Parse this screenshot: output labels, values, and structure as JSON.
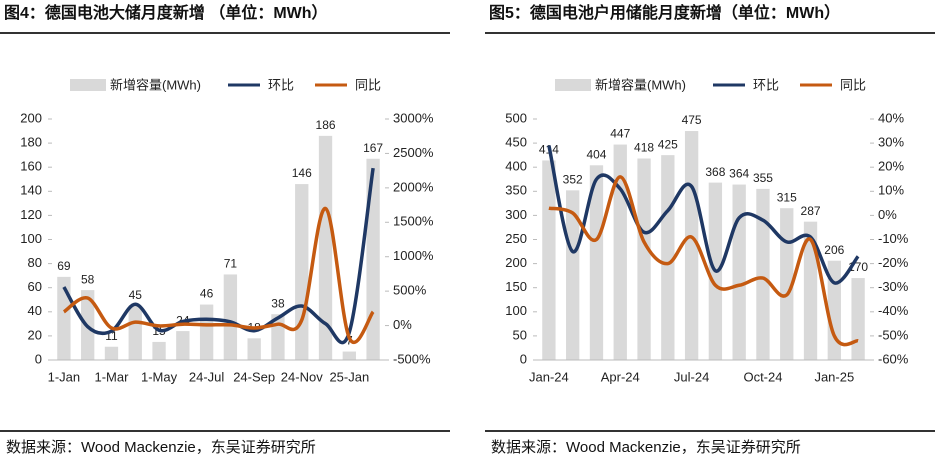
{
  "chart_data": [
    {
      "type": "bar",
      "title": "图4：德国电池大储月度新增 （单位：MWh）",
      "source": "数据来源：Wood Mackenzie，东吴证券研究所",
      "categories": [
        "1-Jan",
        null,
        "1-Mar",
        null,
        "1-May",
        null,
        "24-Jul",
        null,
        "24-Sep",
        null,
        "24-Nov",
        null,
        "25-Jan",
        null
      ],
      "series": [
        {
          "name": "新增容量(MWh)",
          "type": "bar",
          "color": "#d9d9d9",
          "values": [
            69,
            58,
            11,
            45,
            15,
            24,
            46,
            71,
            18,
            38,
            146,
            186,
            7,
            167
          ]
        },
        {
          "name": "环比",
          "type": "line",
          "axis": "y2",
          "color": "#1f3864",
          "values": [
            560,
            -16,
            -81,
            309,
            -67,
            60,
            92,
            54,
            -75,
            111,
            284,
            27,
            -96,
            2286
          ]
        },
        {
          "name": "同比",
          "type": "line",
          "axis": "y2",
          "color": "#c55a11",
          "values": [
            200,
            400,
            -35,
            50,
            -5,
            20,
            10,
            10,
            -35,
            20,
            80,
            1700,
            -180,
            200
          ]
        }
      ],
      "ylim": [
        0,
        200
      ],
      "yticks": [
        0,
        20,
        40,
        60,
        80,
        100,
        120,
        140,
        160,
        180,
        200
      ],
      "y2lim": [
        -500,
        3000
      ],
      "y2ticks": [
        {
          "value": -500,
          "label": "-500%"
        },
        {
          "value": 0,
          "label": "0%"
        },
        {
          "value": 500,
          "label": "500%"
        },
        {
          "value": 1000,
          "label": "1000%"
        },
        {
          "value": 1500,
          "label": "1500%"
        },
        {
          "value": 2000,
          "label": "2000%"
        },
        {
          "value": 2500,
          "label": "2500%"
        },
        {
          "value": 3000,
          "label": "3000%"
        }
      ]
    },
    {
      "type": "bar",
      "title": "图5：德国电池户用储能月度新增（单位：MWh）",
      "source": "数据来源：Wood Mackenzie，东吴证券研究所",
      "categories": [
        "Jan-24",
        null,
        null,
        "Apr-24",
        null,
        null,
        "Jul-24",
        null,
        null,
        "Oct-24",
        null,
        null,
        "Jan-25",
        null
      ],
      "series": [
        {
          "name": "新增容量(MWh)",
          "type": "bar",
          "color": "#d9d9d9",
          "values": [
            414,
            352,
            404,
            447,
            418,
            425,
            475,
            368,
            364,
            355,
            315,
            287,
            206,
            170
          ]
        },
        {
          "name": "环比",
          "type": "line",
          "axis": "y2",
          "color": "#1f3864",
          "values": [
            29,
            -15,
            15,
            11,
            -7,
            2,
            12,
            -23,
            -1,
            -2,
            -11,
            -9,
            -28,
            -17
          ]
        },
        {
          "name": "同比",
          "type": "line",
          "axis": "y2",
          "color": "#c55a11",
          "values": [
            3,
            1,
            -10,
            16,
            -11,
            -20,
            -9,
            -29,
            -29,
            -26,
            -33,
            -10,
            -50,
            -52
          ]
        }
      ],
      "ylim": [
        0,
        500
      ],
      "yticks": [
        0,
        50,
        100,
        150,
        200,
        250,
        300,
        350,
        400,
        450,
        500
      ],
      "y2lim": [
        -60,
        40
      ],
      "y2ticks": [
        {
          "value": -60,
          "label": "-60%"
        },
        {
          "value": -50,
          "label": "-50%"
        },
        {
          "value": -40,
          "label": "-40%"
        },
        {
          "value": -30,
          "label": "-30%"
        },
        {
          "value": -20,
          "label": "-20%"
        },
        {
          "value": -10,
          "label": "-10%"
        },
        {
          "value": 0,
          "label": "0%"
        },
        {
          "value": 10,
          "label": "10%"
        },
        {
          "value": 20,
          "label": "20%"
        },
        {
          "value": 30,
          "label": "30%"
        },
        {
          "value": 40,
          "label": "40%"
        }
      ]
    }
  ]
}
